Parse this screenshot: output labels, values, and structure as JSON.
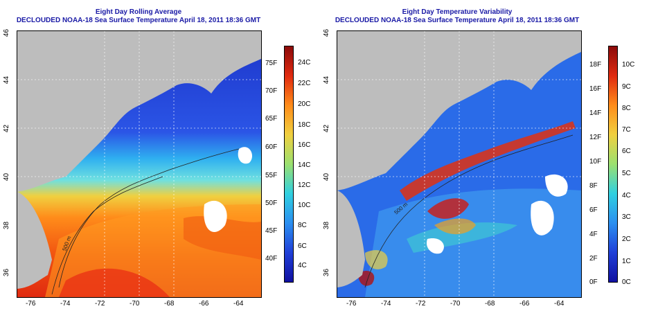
{
  "left": {
    "title": "Eight Day Rolling Average",
    "subtitle": "DECLOUDED NOAA-18 Sea Surface Temperature April 18, 2011 18:36 GMT",
    "x_ticks": [
      "-76",
      "-74",
      "-72",
      "-70",
      "-68",
      "-66",
      "-64"
    ],
    "y_ticks": [
      "46",
      "44",
      "42",
      "40",
      "38",
      "36"
    ],
    "cb_f": [
      "75F",
      "70F",
      "65F",
      "60F",
      "55F",
      "50F",
      "45F",
      "40F"
    ],
    "cb_c": [
      "24C",
      "22C",
      "20C",
      "18C",
      "16C",
      "14C",
      "12C",
      "10C",
      "8C",
      "6C",
      "4C"
    ],
    "contour_label": "500 m"
  },
  "right": {
    "title": "Eight Day Temperature Variability",
    "subtitle": "DECLOUDED NOAA-18 Sea Surface Temperature April 18, 2011 18:36 GMT",
    "x_ticks": [
      "-76",
      "-74",
      "-72",
      "-70",
      "-68",
      "-66",
      "-64"
    ],
    "y_ticks": [
      "46",
      "44",
      "42",
      "40",
      "38",
      "36"
    ],
    "cb_f": [
      "18F",
      "16F",
      "14F",
      "12F",
      "10F",
      "8F",
      "6F",
      "4F",
      "2F",
      "0F"
    ],
    "cb_c": [
      "10C",
      "9C",
      "8C",
      "7C",
      "6C",
      "5C",
      "4C",
      "3C",
      "2C",
      "1C",
      "0C"
    ],
    "contour_label": "500 m"
  },
  "colors": {
    "land": "#bdbdbd",
    "title": "#1a1aa6"
  }
}
